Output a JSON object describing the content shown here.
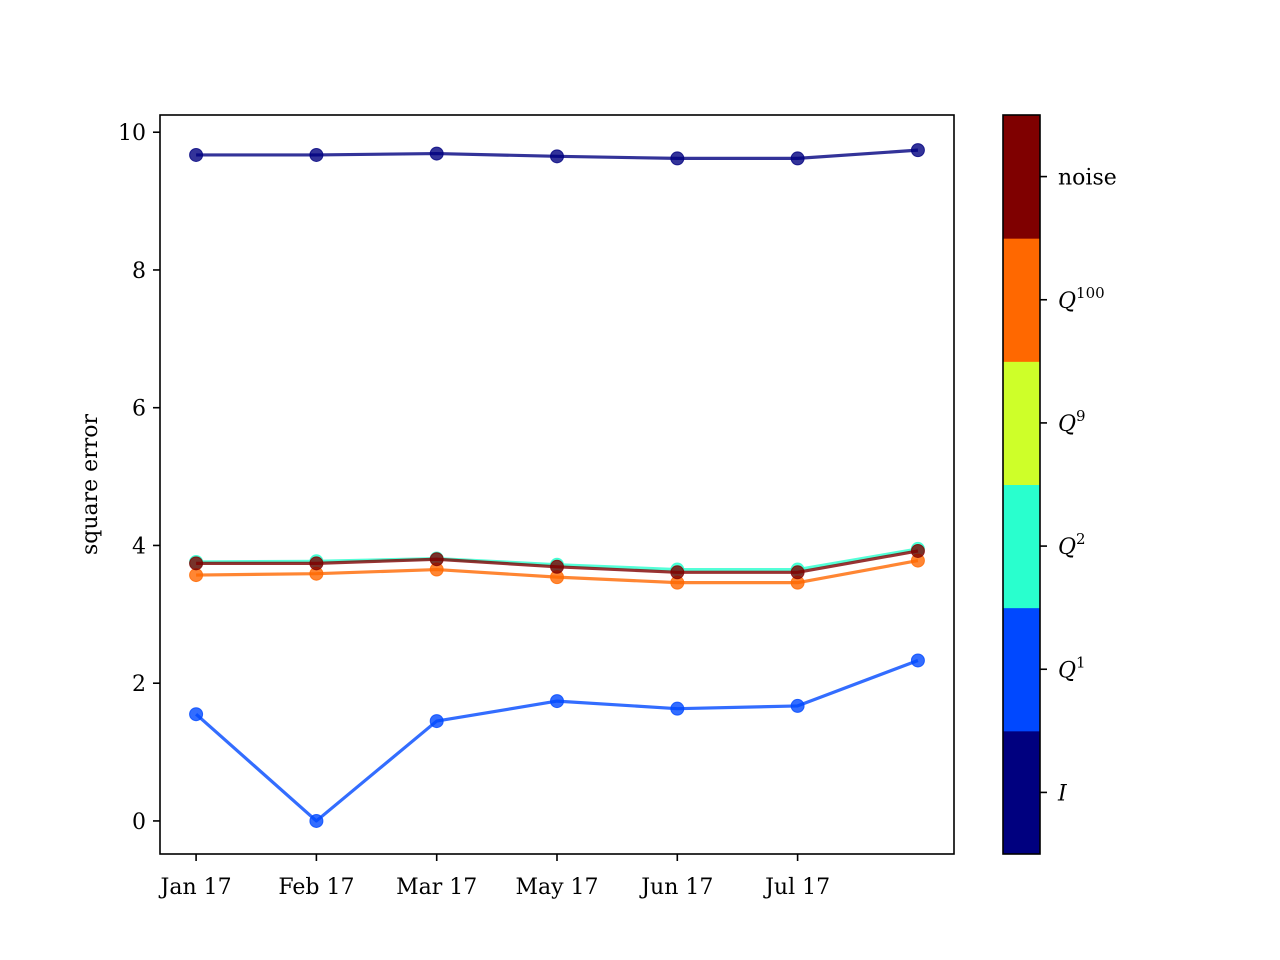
{
  "chart_data": {
    "type": "line",
    "xlabel": "",
    "ylabel": "square error",
    "ylim": [
      -0.48,
      10.25
    ],
    "yticks": [
      0,
      2,
      4,
      6,
      8,
      10
    ],
    "ytick_labels": [
      "0",
      "2",
      "4",
      "6",
      "8",
      "10"
    ],
    "x": [
      0,
      1,
      2,
      3,
      4,
      5,
      6
    ],
    "xlim": [
      -0.3,
      6.3
    ],
    "xticks": [
      0,
      1,
      2,
      3,
      4,
      5
    ],
    "xtick_labels": [
      "Jan 17",
      "Feb 17",
      "Mar 17",
      "May 17",
      "Jun 17",
      "Jul 17"
    ],
    "grid": false,
    "series": [
      {
        "values": [
          9.67,
          9.67,
          9.69,
          9.65,
          9.62,
          9.62,
          9.74
        ],
        "color": "#00007f"
      },
      {
        "values": [
          1.55,
          0.0,
          1.45,
          1.74,
          1.63,
          1.67,
          2.33
        ],
        "color": "#0048ff"
      },
      {
        "values": [
          3.76,
          3.77,
          3.81,
          3.72,
          3.65,
          3.65,
          3.95
        ],
        "color": "#29ffce"
      },
      {
        "values": [
          3.57,
          3.59,
          3.65,
          3.54,
          3.46,
          3.46,
          3.78
        ],
        "color": "#ff6800"
      },
      {
        "values": [
          3.74,
          3.74,
          3.8,
          3.69,
          3.61,
          3.61,
          3.92
        ],
        "color": "#7f0000"
      }
    ],
    "colorbar": {
      "labels": [
        {
          "text": "I",
          "math": true,
          "color": "#00007f"
        },
        {
          "text": "Q",
          "sup": "1",
          "math": true,
          "color": "#0048ff"
        },
        {
          "text": "Q",
          "sup": "2",
          "math": true,
          "color": "#29ffce"
        },
        {
          "text": "Q",
          "sup": "9",
          "math": true,
          "color": "#ceff29"
        },
        {
          "text": "Q",
          "sup": "100",
          "math": true,
          "color": "#ff6800"
        },
        {
          "text": "noise",
          "math": false,
          "color": "#7f0000"
        }
      ]
    }
  }
}
